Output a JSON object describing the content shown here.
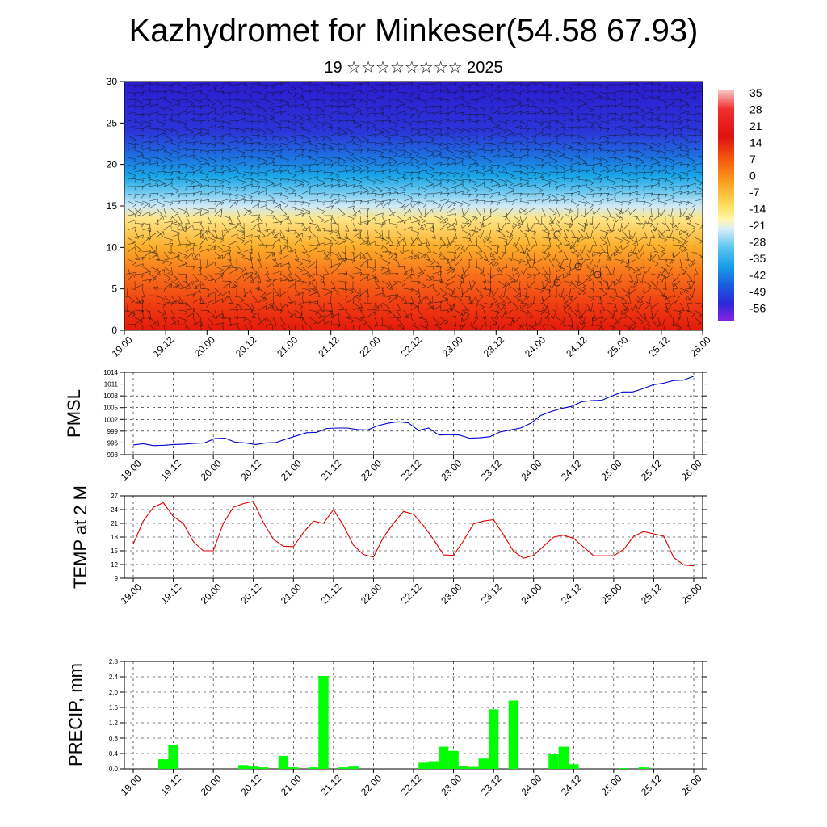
{
  "title": "Kazhydromet for Minkeser(54.58 67.93)",
  "subtitle": "19 ☆☆☆☆☆☆☆☆ 2025",
  "time_labels": [
    "19.00",
    "19.12",
    "20.00",
    "20.12",
    "21.00",
    "21.12",
    "22.00",
    "22.12",
    "23.00",
    "23.12",
    "24.00",
    "24.12",
    "25.00",
    "25.12",
    "26.00"
  ],
  "colors": {
    "pmsl": "#0000cc",
    "temp": "#dd0000",
    "precip": "#00ff00"
  },
  "chart_data": [
    {
      "type": "heatmap",
      "name": "vertical-profile",
      "x_labels": [
        "19.00",
        "19.12",
        "20.00",
        "20.12",
        "21.00",
        "21.12",
        "22.00",
        "22.12",
        "23.00",
        "23.12",
        "24.00",
        "24.12",
        "25.00",
        "25.12",
        "26.00"
      ],
      "y_ticks": [
        "0",
        "5",
        "10",
        "15",
        "20",
        "25",
        "30"
      ],
      "ylim": [
        0,
        30
      ],
      "colorbar_labels": [
        "35",
        "28",
        "21",
        "14",
        "7",
        "0",
        "-7",
        "-14",
        "-21",
        "-28",
        "-35",
        "-42",
        "-49",
        "-56"
      ],
      "overlay": "wind barbs"
    },
    {
      "type": "line",
      "name": "PMSL",
      "ylabel": "PMSL",
      "y_ticks": [
        "1014",
        "1011",
        "1008",
        "1005",
        "1002",
        "999",
        "996",
        "993"
      ],
      "ylim": [
        993,
        1014
      ],
      "values": [
        995.5,
        995.8,
        995.3,
        995.4,
        995.6,
        995.7,
        995.9,
        996.0,
        997.1,
        997.2,
        996.2,
        996.0,
        995.6,
        996.0,
        996.1,
        997.0,
        997.8,
        998.6,
        998.7,
        999.7,
        999.8,
        999.8,
        999.4,
        999.3,
        1000.4,
        1001.0,
        1001.4,
        1001.1,
        999.2,
        999.8,
        998.0,
        998.1,
        998.0,
        997.2,
        997.3,
        997.6,
        998.8,
        999.3,
        999.8,
        1001.0,
        1003.0,
        1004.0,
        1004.8,
        1005.3,
        1006.5,
        1006.8,
        1006.9,
        1008.0,
        1009.0,
        1009.0,
        1009.8,
        1010.8,
        1011.2,
        1011.9,
        1012.0,
        1013.0
      ]
    },
    {
      "type": "line",
      "name": "TEMP at 2 M",
      "ylabel": "TEMP at 2 M",
      "y_ticks": [
        "27",
        "24",
        "21",
        "18",
        "15",
        "12",
        "9"
      ],
      "ylim": [
        9,
        27
      ],
      "values": [
        16.5,
        21.5,
        24.5,
        25.5,
        22.5,
        21.0,
        17.0,
        15.0,
        15.0,
        21.0,
        24.5,
        25.3,
        25.8,
        21.2,
        17.5,
        16.0,
        15.9,
        19.0,
        21.5,
        21.0,
        24.0,
        20.5,
        16.2,
        14.2,
        13.6,
        18.0,
        21.0,
        23.6,
        23.0,
        20.5,
        17.5,
        14.1,
        14.0,
        17.2,
        20.9,
        21.5,
        21.8,
        18.5,
        14.9,
        13.4,
        14.0,
        16.0,
        18.0,
        18.4,
        17.7,
        15.8,
        13.9,
        13.9,
        13.9,
        15.3,
        18.2,
        19.2,
        18.7,
        18.2,
        13.5,
        11.9,
        11.7
      ]
    },
    {
      "type": "bar",
      "name": "PRECIP, mm",
      "ylabel": "PRECIP, mm",
      "y_ticks": [
        "2.8",
        "2.4",
        "2.0",
        "1.6",
        "1.2",
        "0.8",
        "0.4",
        "0.0"
      ],
      "ylim": [
        0,
        2.8
      ],
      "values": [
        0,
        0,
        0,
        0.25,
        0.62,
        0,
        0,
        0,
        0,
        0,
        0,
        0.1,
        0.06,
        0.04,
        0,
        0.34,
        0.04,
        0,
        0.04,
        2.42,
        0,
        0.04,
        0.06,
        0,
        0,
        0,
        0,
        0,
        0,
        0.16,
        0.2,
        0.58,
        0.47,
        0.08,
        0.05,
        0.27,
        1.55,
        0,
        1.78,
        0,
        0,
        0,
        0.38,
        0.58,
        0.12,
        0,
        0,
        0,
        0,
        0.02,
        0,
        0.04,
        0,
        0,
        0,
        0,
        0
      ]
    }
  ]
}
